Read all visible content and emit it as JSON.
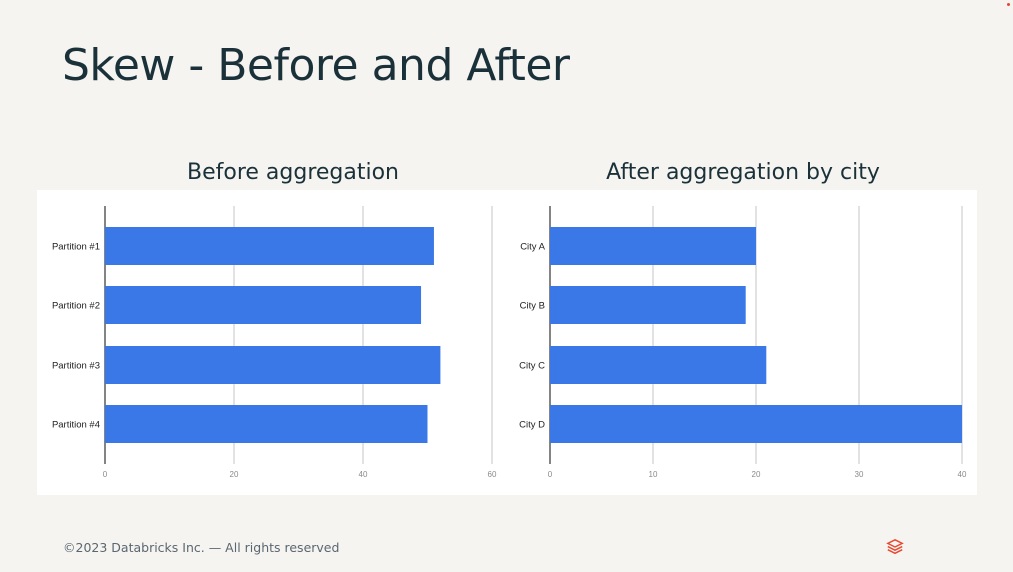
{
  "slide": {
    "title": "Skew - Before and After",
    "footer": "©2023 Databricks Inc. — All rights reserved",
    "logo_icon": "databricks-logo-icon",
    "accent_color": "#e8472f"
  },
  "chart_data": [
    {
      "type": "bar",
      "orientation": "horizontal",
      "title": "Before aggregation",
      "categories": [
        "Partition #1",
        "Partition #2",
        "Partition #3",
        "Partition #4"
      ],
      "values": [
        51,
        49,
        52,
        50
      ],
      "xlim": [
        0,
        60
      ],
      "xticks": [
        0,
        20,
        40,
        60
      ],
      "grid": true,
      "bar_color": "#3b78e7"
    },
    {
      "type": "bar",
      "orientation": "horizontal",
      "title": "After aggregation by city",
      "categories": [
        "City A",
        "City B",
        "City C",
        "City D"
      ],
      "values": [
        20,
        19,
        21,
        40
      ],
      "xlim": [
        0,
        40
      ],
      "xticks": [
        0,
        10,
        20,
        30,
        40
      ],
      "grid": true,
      "bar_color": "#3b78e7"
    }
  ]
}
